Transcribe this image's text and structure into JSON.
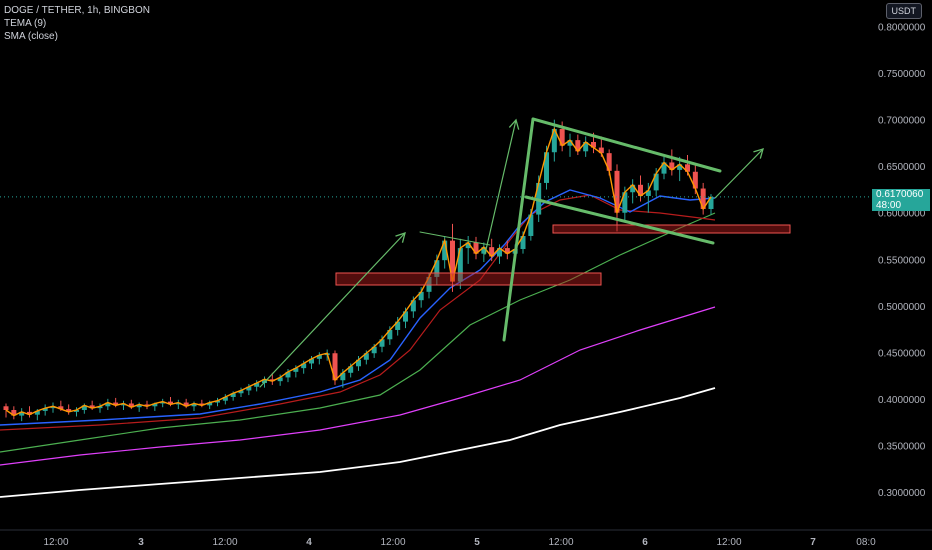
{
  "legend": {
    "title": "DOGE / TETHER, 1h, BINGBON",
    "tema": "TEMA (9)",
    "sma": "SMA (close)"
  },
  "currency": "USDT",
  "price_tag": {
    "price": "0.6170060",
    "countdown": "48:00"
  },
  "colors": {
    "background": "#000000",
    "up": "#26a69a",
    "down": "#ef5350",
    "tema": "#ff9800",
    "drawings": "#66bb6a",
    "zone_fill": "#b71c1c",
    "zone_border": "#ef5350"
  },
  "chart_data": {
    "type": "candlestick",
    "y_axis_ticks": [
      "0.8000000",
      "0.7500000",
      "0.7000000",
      "0.6500000",
      "0.6000000",
      "0.5500000",
      "0.5000000",
      "0.4500000",
      "0.4000000",
      "0.3500000",
      "0.3000000"
    ],
    "x_axis_ticks": [
      "12:00",
      "3",
      "12:00",
      "4",
      "12:00",
      "5",
      "12:00",
      "6",
      "12:00",
      "7",
      "08:0"
    ],
    "ylim": [
      0.265,
      0.81
    ],
    "last_price": 0.617006,
    "candles": [
      [
        0.392,
        0.395,
        0.38,
        0.388
      ],
      [
        0.388,
        0.392,
        0.378,
        0.382
      ],
      [
        0.382,
        0.39,
        0.376,
        0.386
      ],
      [
        0.386,
        0.392,
        0.38,
        0.383
      ],
      [
        0.383,
        0.389,
        0.377,
        0.387
      ],
      [
        0.387,
        0.394,
        0.382,
        0.39
      ],
      [
        0.39,
        0.396,
        0.385,
        0.392
      ],
      [
        0.392,
        0.398,
        0.387,
        0.389
      ],
      [
        0.389,
        0.394,
        0.383,
        0.386
      ],
      [
        0.386,
        0.391,
        0.381,
        0.388
      ],
      [
        0.388,
        0.395,
        0.384,
        0.393
      ],
      [
        0.393,
        0.398,
        0.388,
        0.39
      ],
      [
        0.39,
        0.395,
        0.385,
        0.392
      ],
      [
        0.392,
        0.4,
        0.388,
        0.396
      ],
      [
        0.396,
        0.401,
        0.391,
        0.393
      ],
      [
        0.393,
        0.398,
        0.388,
        0.395
      ],
      [
        0.395,
        0.399,
        0.389,
        0.391
      ],
      [
        0.391,
        0.396,
        0.386,
        0.394
      ],
      [
        0.394,
        0.398,
        0.389,
        0.392
      ],
      [
        0.392,
        0.396,
        0.387,
        0.395
      ],
      [
        0.395,
        0.4,
        0.391,
        0.397
      ],
      [
        0.397,
        0.402,
        0.392,
        0.394
      ],
      [
        0.394,
        0.399,
        0.389,
        0.396
      ],
      [
        0.396,
        0.4,
        0.39,
        0.392
      ],
      [
        0.392,
        0.397,
        0.387,
        0.395
      ],
      [
        0.395,
        0.399,
        0.391,
        0.393
      ],
      [
        0.393,
        0.398,
        0.389,
        0.396
      ],
      [
        0.396,
        0.401,
        0.392,
        0.398
      ],
      [
        0.398,
        0.405,
        0.394,
        0.402
      ],
      [
        0.402,
        0.408,
        0.398,
        0.406
      ],
      [
        0.406,
        0.412,
        0.402,
        0.409
      ],
      [
        0.409,
        0.416,
        0.404,
        0.413
      ],
      [
        0.413,
        0.42,
        0.408,
        0.417
      ],
      [
        0.417,
        0.424,
        0.412,
        0.421
      ],
      [
        0.421,
        0.428,
        0.415,
        0.419
      ],
      [
        0.419,
        0.426,
        0.414,
        0.423
      ],
      [
        0.423,
        0.432,
        0.418,
        0.429
      ],
      [
        0.429,
        0.436,
        0.423,
        0.433
      ],
      [
        0.433,
        0.441,
        0.427,
        0.438
      ],
      [
        0.438,
        0.446,
        0.432,
        0.443
      ],
      [
        0.443,
        0.45,
        0.437,
        0.447
      ],
      [
        0.447,
        0.453,
        0.441,
        0.449
      ],
      [
        0.449,
        0.452,
        0.415,
        0.42
      ],
      [
        0.42,
        0.432,
        0.412,
        0.428
      ],
      [
        0.428,
        0.438,
        0.423,
        0.435
      ],
      [
        0.435,
        0.446,
        0.43,
        0.442
      ],
      [
        0.442,
        0.452,
        0.437,
        0.449
      ],
      [
        0.449,
        0.459,
        0.444,
        0.456
      ],
      [
        0.456,
        0.468,
        0.45,
        0.464
      ],
      [
        0.464,
        0.478,
        0.458,
        0.474
      ],
      [
        0.474,
        0.488,
        0.468,
        0.483
      ],
      [
        0.483,
        0.498,
        0.476,
        0.494
      ],
      [
        0.494,
        0.51,
        0.487,
        0.506
      ],
      [
        0.506,
        0.52,
        0.498,
        0.515
      ],
      [
        0.515,
        0.535,
        0.508,
        0.531
      ],
      [
        0.531,
        0.555,
        0.522,
        0.549
      ],
      [
        0.549,
        0.575,
        0.54,
        0.57
      ],
      [
        0.57,
        0.588,
        0.515,
        0.526
      ],
      [
        0.526,
        0.572,
        0.518,
        0.562
      ],
      [
        0.562,
        0.575,
        0.545,
        0.568
      ],
      [
        0.568,
        0.574,
        0.55,
        0.556
      ],
      [
        0.556,
        0.568,
        0.547,
        0.563
      ],
      [
        0.563,
        0.572,
        0.548,
        0.553
      ],
      [
        0.553,
        0.566,
        0.545,
        0.562
      ],
      [
        0.562,
        0.57,
        0.55,
        0.556
      ],
      [
        0.556,
        0.566,
        0.55,
        0.561
      ],
      [
        0.561,
        0.58,
        0.556,
        0.575
      ],
      [
        0.575,
        0.604,
        0.57,
        0.598
      ],
      [
        0.598,
        0.64,
        0.59,
        0.632
      ],
      [
        0.632,
        0.672,
        0.625,
        0.665
      ],
      [
        0.665,
        0.7,
        0.655,
        0.69
      ],
      [
        0.69,
        0.698,
        0.666,
        0.672
      ],
      [
        0.672,
        0.685,
        0.66,
        0.678
      ],
      [
        0.678,
        0.684,
        0.662,
        0.666
      ],
      [
        0.666,
        0.682,
        0.66,
        0.676
      ],
      [
        0.676,
        0.686,
        0.664,
        0.67
      ],
      [
        0.67,
        0.682,
        0.66,
        0.664
      ],
      [
        0.664,
        0.668,
        0.64,
        0.645
      ],
      [
        0.645,
        0.652,
        0.58,
        0.6
      ],
      [
        0.6,
        0.628,
        0.592,
        0.622
      ],
      [
        0.622,
        0.636,
        0.61,
        0.63
      ],
      [
        0.63,
        0.64,
        0.612,
        0.618
      ],
      [
        0.618,
        0.632,
        0.6,
        0.624
      ],
      [
        0.624,
        0.648,
        0.618,
        0.642
      ],
      [
        0.642,
        0.66,
        0.636,
        0.654
      ],
      [
        0.654,
        0.668,
        0.64,
        0.646
      ],
      [
        0.646,
        0.66,
        0.634,
        0.652
      ],
      [
        0.652,
        0.662,
        0.64,
        0.644
      ],
      [
        0.644,
        0.652,
        0.62,
        0.626
      ],
      [
        0.626,
        0.632,
        0.598,
        0.604
      ],
      [
        0.604,
        0.62,
        0.598,
        0.617
      ]
    ]
  }
}
